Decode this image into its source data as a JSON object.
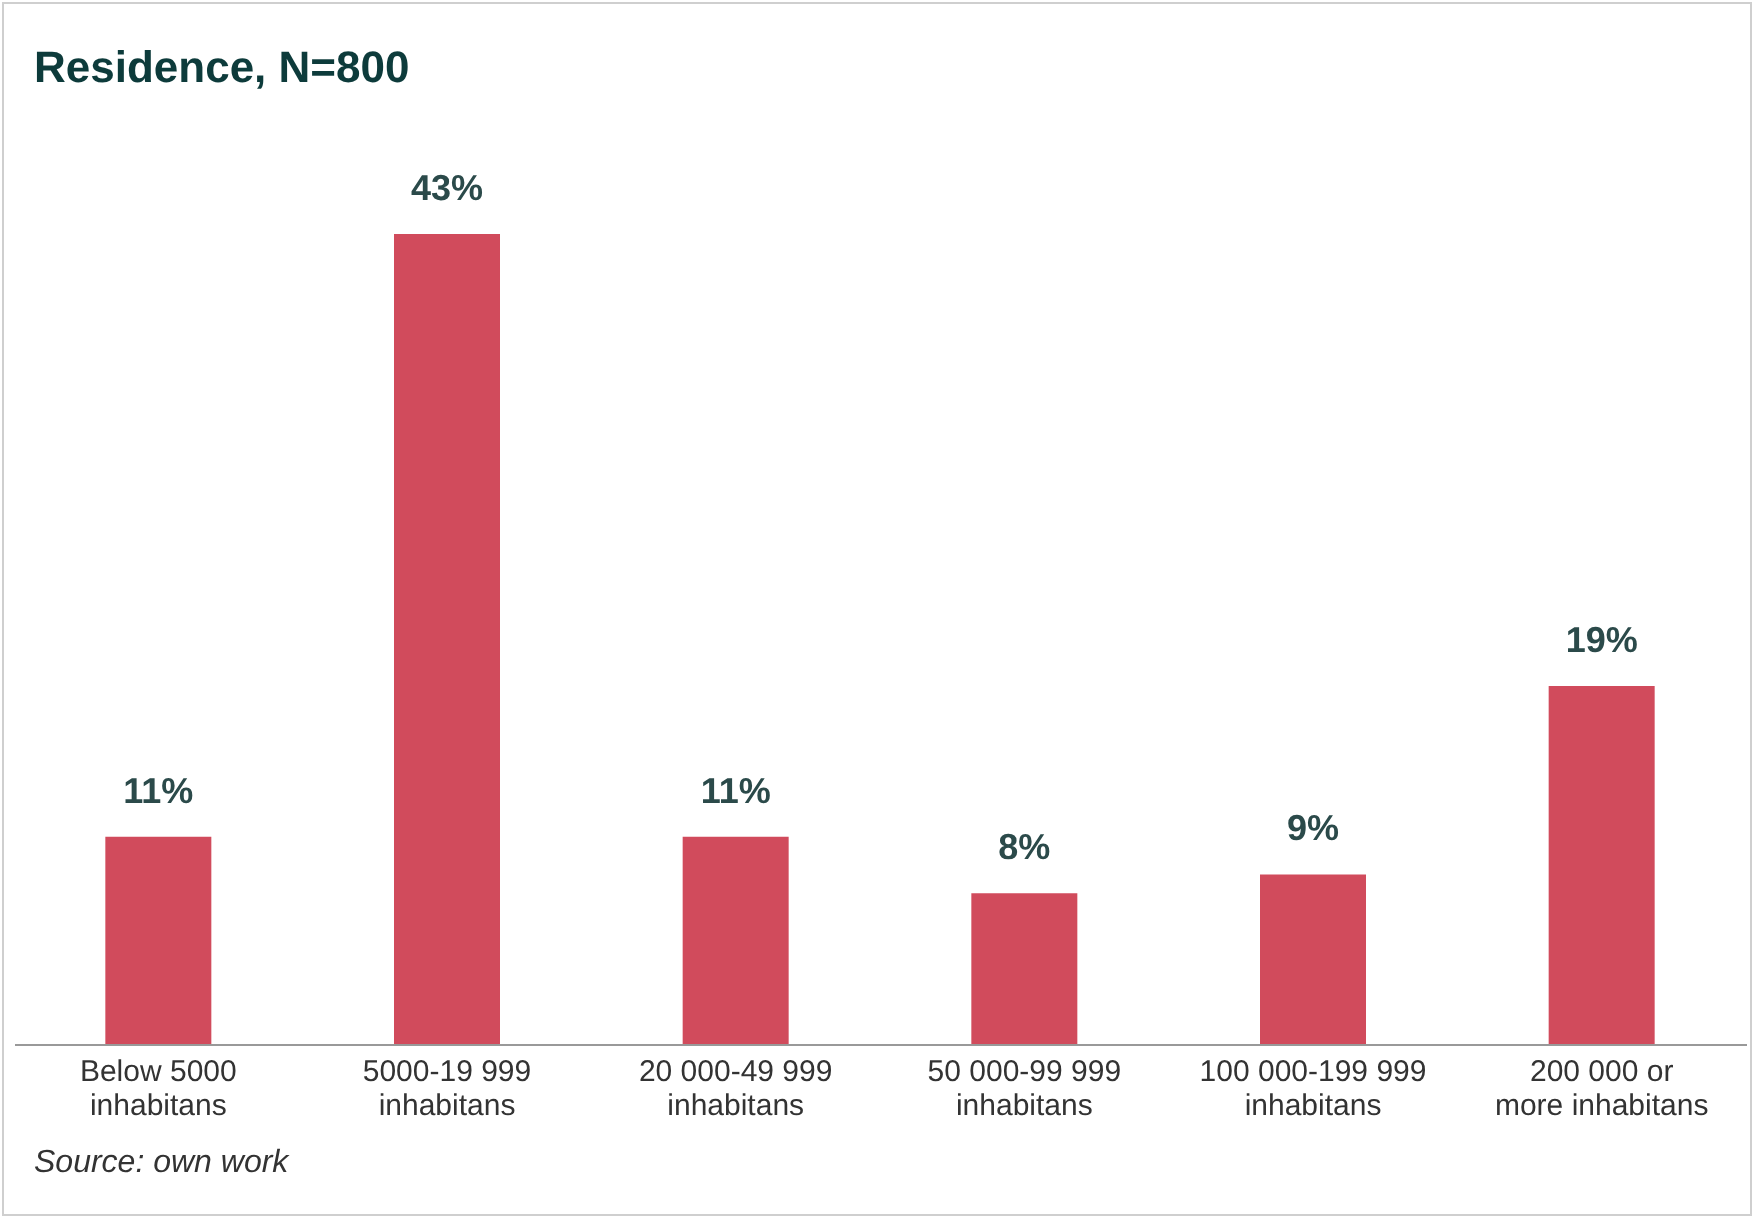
{
  "chart_data": {
    "type": "bar",
    "title": "Residence, N=800",
    "categories": [
      "Below 5000\ninhabitans",
      "5000-19 999\ninhabitans",
      "20 000-49 999\ninhabitans",
      "50 000-99 999\ninhabitans",
      "100 000-199 999\ninhabitans",
      "200 000 or\nmore inhabitans"
    ],
    "values": [
      11,
      43,
      11,
      8,
      9,
      19
    ],
    "value_labels": [
      "11%",
      "43%",
      "11%",
      "8%",
      "9%",
      "19%"
    ],
    "color": "#d14b5c",
    "annotations": [
      "Source: own work"
    ]
  }
}
